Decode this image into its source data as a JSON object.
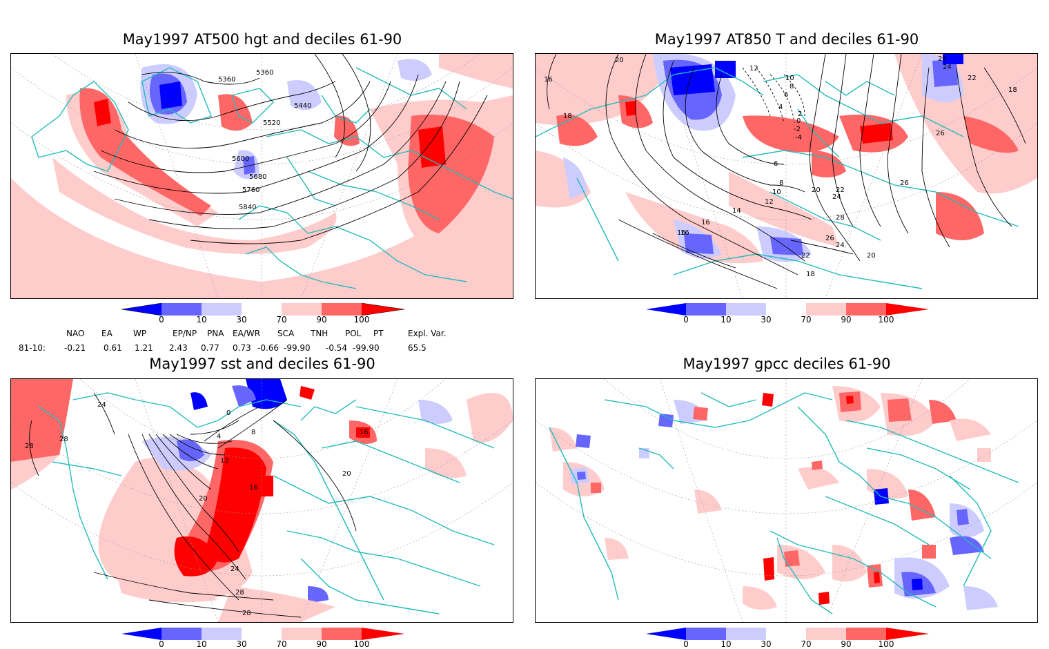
{
  "panels": [
    {
      "id": "p1",
      "title": "May1997 AT500 hgt and deciles 61-90",
      "contour_labels": [
        "5360",
        "5360",
        "5440",
        "5520",
        "5600",
        "5680",
        "5760",
        "5840"
      ]
    },
    {
      "id": "p2",
      "title": "May1997 AT850 T and deciles 61-90",
      "contour_labels": [
        "20",
        "16",
        "18",
        "12",
        "10",
        "8",
        "6",
        "4",
        "2",
        "0",
        "-2",
        "-4",
        "-6",
        "-8",
        "-10",
        "-12",
        "26",
        "24",
        "22",
        "18",
        "26",
        "6",
        "8",
        "10",
        "12",
        "14",
        "16",
        "16",
        "20",
        "22",
        "24",
        "26",
        "28",
        "26",
        "24",
        "22",
        "20",
        "18",
        "16"
      ]
    },
    {
      "id": "p3",
      "title": "May1997 sst and deciles 61-90",
      "contour_labels": [
        "28",
        "24",
        "28",
        "0",
        "4",
        "8",
        "12",
        "16",
        "16",
        "20",
        "20",
        "24",
        "28",
        "28"
      ]
    },
    {
      "id": "p4",
      "title": "May1997 gpcc deciles 61-90",
      "contour_labels": []
    }
  ],
  "colorbar": {
    "labels": [
      "0",
      "10",
      "30",
      "70",
      "90",
      "100"
    ],
    "colors": [
      "#0000ff",
      "#6666ff",
      "#ccccff",
      "#ffffff",
      "#ffcccc",
      "#ff6666",
      "#ff0000"
    ]
  },
  "indices": {
    "headers": [
      "NAO",
      "EA",
      "WP",
      "EP/NP",
      "PNA",
      "EA/WR",
      "SCA",
      "TNH",
      "POL",
      "PT",
      "Expl. Var."
    ],
    "row_label": "81-10:",
    "values": [
      "-0.21",
      "0.61",
      "1.21",
      "2.43",
      "0.77",
      "0.73",
      "-0.66",
      "-99.90",
      "-0.54",
      "-99.90",
      "65.5"
    ]
  },
  "map_colors": {
    "land_outline": "#22bbbb",
    "grid": "#999999",
    "contour": "#000000"
  }
}
